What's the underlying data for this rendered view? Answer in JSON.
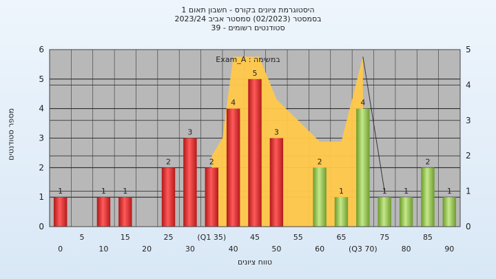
{
  "header": {
    "line1": "היסטוגרמת ציונים בקורס - חשבון תאום 1",
    "line2": "בסמסטר  (02/2023)  סמסטר אביב 2023/24",
    "line3": "סטודנטים רשומים - 39"
  },
  "colors": {
    "red_bar": "#e02626",
    "green_bar": "#8cc63f",
    "area": "#ffc84a",
    "plot_bg": "#b8b8b8",
    "grid": "#000000"
  },
  "chart_data": {
    "type": "bar",
    "title": "Exam_A : במשימה",
    "xlabel": "טווח ציונים",
    "ylabel": "מספר סטודנטים",
    "ylim": [
      0,
      6
    ],
    "y2lim": [
      0,
      5
    ],
    "yticks": [
      0,
      1,
      2,
      3,
      4,
      5,
      6
    ],
    "y2ticks": [
      0,
      1,
      2,
      3,
      4,
      5
    ],
    "categories": [
      "0",
      "5",
      "10",
      "15",
      "20",
      "25",
      "30",
      "35",
      "40",
      "45",
      "50",
      "55",
      "60",
      "65",
      "70",
      "75",
      "80",
      "85",
      "90"
    ],
    "xtick_labels_lower": [
      "0",
      "10",
      "20",
      "30",
      "40",
      "50",
      "60",
      "(Q3 70)",
      "80",
      "90"
    ],
    "xtick_labels_upper": [
      "5",
      "15",
      "25",
      "(Q1 35)",
      "45",
      "55",
      "65",
      "75",
      "85"
    ],
    "series": [
      {
        "values": [
          1,
          0,
          1,
          1,
          0,
          2,
          3,
          2,
          4,
          5,
          3,
          0,
          2,
          1,
          4,
          1,
          1,
          2,
          1
        ]
      }
    ],
    "bar_colors": [
      "red",
      "red",
      "red",
      "red",
      "red",
      "red",
      "red",
      "red",
      "red",
      "red",
      "red",
      "red",
      "green",
      "green",
      "green",
      "green",
      "green",
      "green",
      "green"
    ],
    "data_labels": [
      "1",
      "",
      "1",
      "1",
      "",
      "2",
      "3",
      "2",
      "4",
      "5",
      "3",
      "",
      "2",
      "1",
      "4",
      "1",
      "1",
      "2",
      "1"
    ],
    "area_series": {
      "x": [
        "35",
        "37.5",
        "40",
        "45",
        "46",
        "50",
        "60",
        "65",
        "70"
      ],
      "y": [
        2,
        2.5,
        4.8,
        4.8,
        4.8,
        3.6,
        2.4,
        2.4,
        4.8
      ],
      "start_x": "35",
      "end_x": "70"
    },
    "line_series": {
      "x": [
        "70",
        "75"
      ],
      "y": [
        4.8,
        1
      ]
    },
    "grid": true
  }
}
